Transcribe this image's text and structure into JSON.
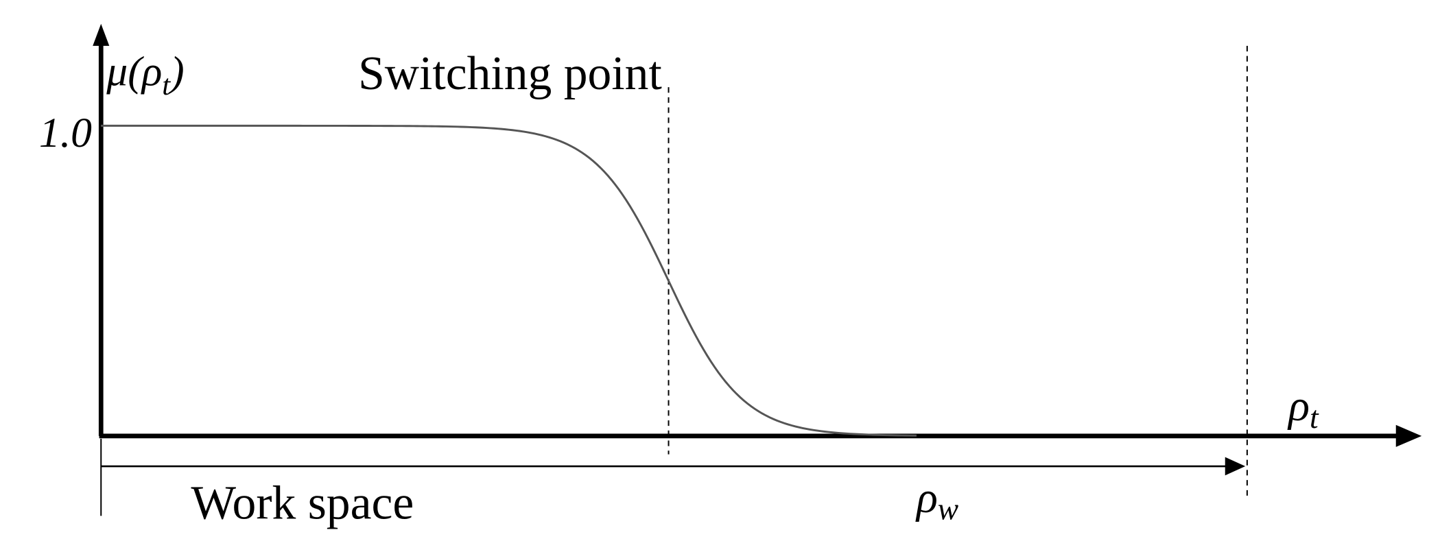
{
  "y_axis_label": {
    "main": "μ(ρ",
    "sub": "t",
    "close": ")"
  },
  "y_tick_label": "1.0",
  "switching_label": "Switching point",
  "x_axis_label": {
    "main": "ρ",
    "sub": "t"
  },
  "work_space_label": "Work space",
  "workspace_limit_label": {
    "main": "ρ",
    "sub": "w"
  }
}
